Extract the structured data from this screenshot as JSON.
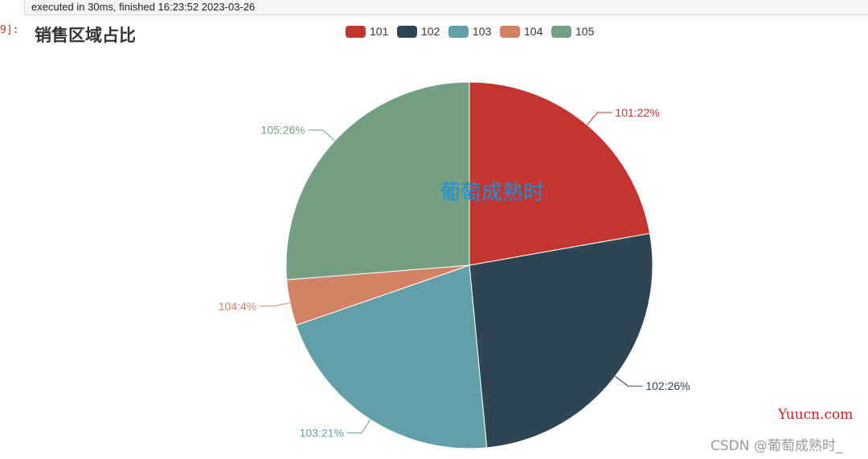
{
  "exec_info": "executed in 30ms, finished 16:23:52 2023-03-26",
  "cell_prompt": "9]:",
  "chart_data": {
    "type": "pie",
    "title": "销售区域占比",
    "watermark": "葡萄成熟时",
    "legend_position": "top",
    "label_format": "{name}:{percent}",
    "slices": [
      {
        "name": "101",
        "value": 22,
        "label": "101:22%",
        "color": "#c23531"
      },
      {
        "name": "102",
        "value": 26,
        "label": "102:26%",
        "color": "#2f4554"
      },
      {
        "name": "103",
        "value": 21,
        "label": "103:21%",
        "color": "#61a0a8"
      },
      {
        "name": "104",
        "value": 4,
        "label": "104:4%",
        "color": "#d48265"
      },
      {
        "name": "105",
        "value": 26,
        "label": "105:26%",
        "color": "#749f83"
      }
    ],
    "watermark_color": "#1e90d6"
  },
  "site_watermark": "Yuucn.com",
  "csdn_watermark": "CSDN @葡萄成熟时_"
}
